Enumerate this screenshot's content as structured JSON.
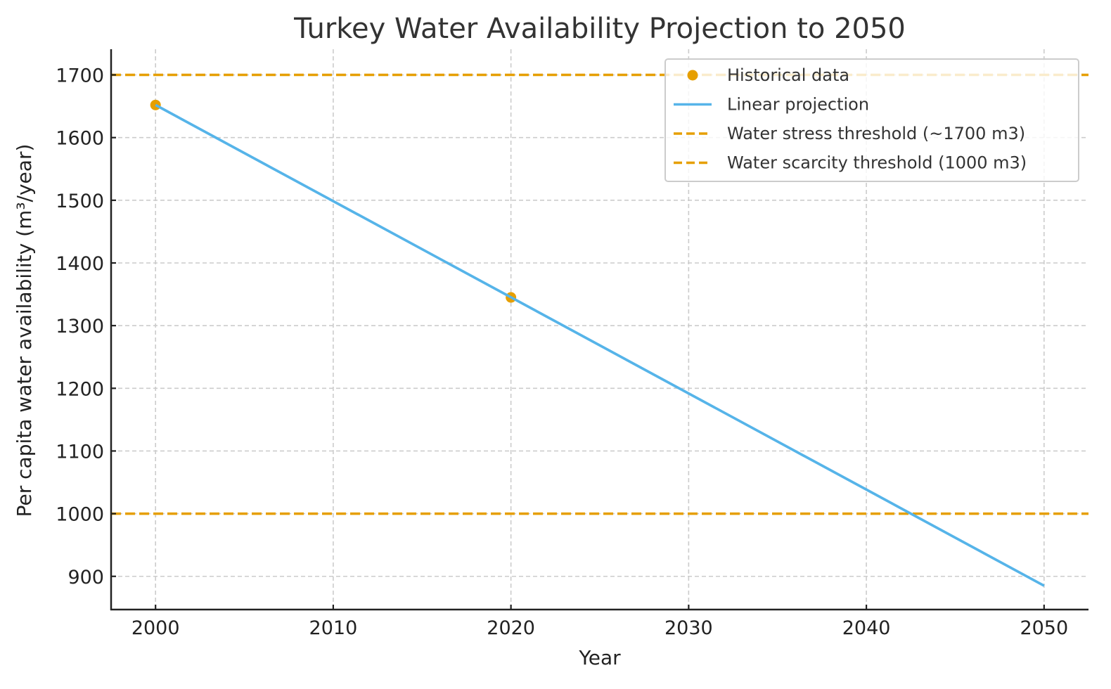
{
  "chart_data": {
    "type": "line",
    "title": "Turkey Water Availability Projection to 2050",
    "xlabel": "Year",
    "ylabel": "Per capita water availability (m³/year)",
    "xlim": [
      1997.5,
      2052.5
    ],
    "ylim": [
      847,
      1741
    ],
    "xticks": [
      2000,
      2010,
      2020,
      2030,
      2040,
      2050
    ],
    "yticks": [
      900,
      1000,
      1100,
      1200,
      1300,
      1400,
      1500,
      1600,
      1700
    ],
    "grid": true,
    "legend_position": "top-right",
    "series": [
      {
        "name": "Historical data",
        "kind": "scatter",
        "color": "#E69F00",
        "x": [
          2000,
          2020
        ],
        "y": [
          1652,
          1345
        ]
      },
      {
        "name": "Linear projection",
        "kind": "line",
        "color": "#56B4E9",
        "x": [
          2000,
          2050
        ],
        "y": [
          1652,
          885
        ]
      },
      {
        "name": "Water stress threshold (~1700 m3)",
        "kind": "hline",
        "color": "#E69F00",
        "y": 1700
      },
      {
        "name": "Water scarcity threshold (1000 m3)",
        "kind": "hline",
        "color": "#E69F00",
        "y": 1000
      }
    ]
  }
}
